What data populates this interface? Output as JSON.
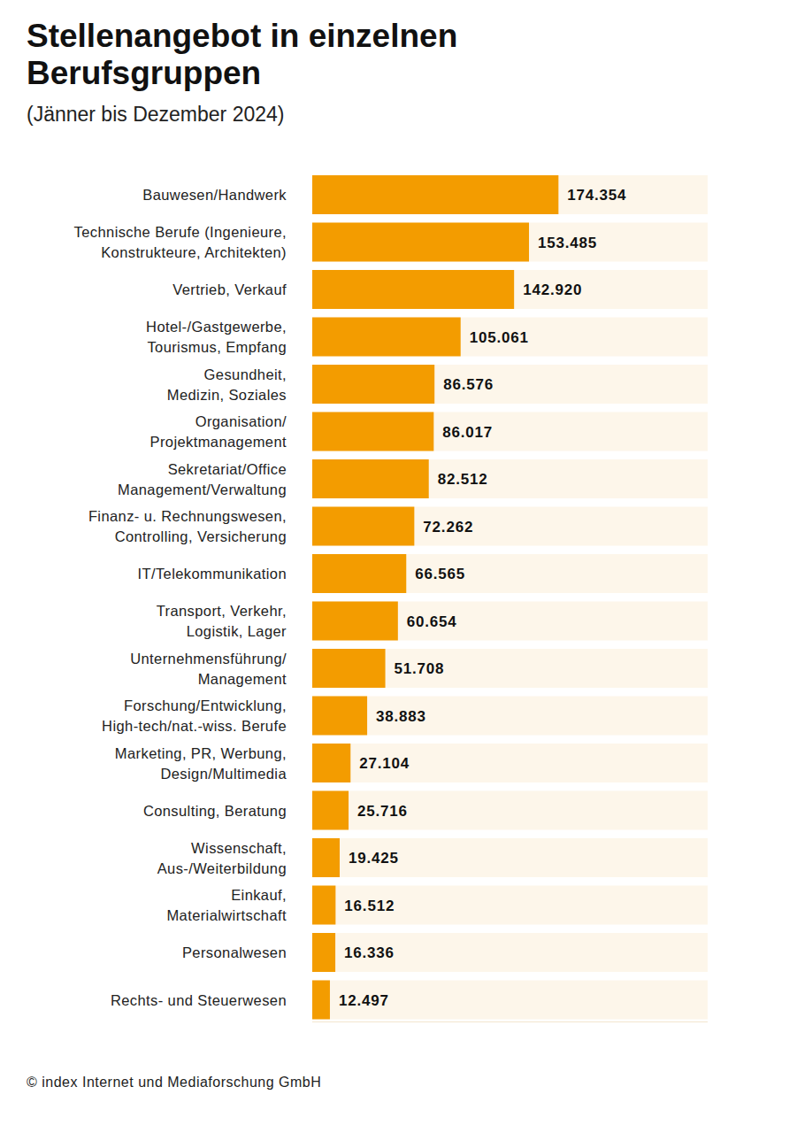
{
  "chart_data": {
    "type": "bar",
    "orientation": "horizontal",
    "title": "Stellenangebot in einzelnen Berufsgruppen",
    "subtitle": "(Jänner bis Dezember 2024)",
    "source": "© index Internet und Mediaforschung GmbH",
    "categories": [
      "Bauwesen/Handwerk",
      "Technische Berufe (Ingenieure,\nKonstrukteure, Architekten)",
      "Vertrieb, Verkauf",
      "Hotel-/Gastgewerbe,\nTourismus, Empfang",
      "Gesundheit,\nMedizin, Soziales",
      "Organisation/\nProjektmanagement",
      "Sekretariat/Office\nManagement/Verwaltung",
      "Finanz- u. Rechnungswesen,\nControlling, Versicherung",
      "IT/Telekommunikation",
      "Transport, Verkehr,\nLogistik, Lager",
      "Unternehmensführung/\nManagement",
      "Forschung/Entwicklung,\nHigh-tech/nat.-wiss. Berufe",
      "Marketing, PR, Werbung,\nDesign/Multimedia",
      "Consulting, Beratung",
      "Wissenschaft,\nAus-/Weiterbildung",
      "Einkauf,\nMaterialwirtschaft",
      "Personalwesen",
      "Rechts- und Steuerwesen"
    ],
    "values": [
      174354,
      153485,
      142920,
      105061,
      86576,
      86017,
      82512,
      72262,
      66565,
      60654,
      51708,
      38883,
      27104,
      25716,
      19425,
      16512,
      16336,
      12497
    ],
    "value_labels": [
      "174.354",
      "153.485",
      "142.920",
      "105.061",
      "86.576",
      "86.017",
      "82.512",
      "72.262",
      "66.565",
      "60.654",
      "51.708",
      "38.883",
      "27.104",
      "25.716",
      "19.425",
      "16.512",
      "16.336",
      "12.497"
    ],
    "color": "#f39c00",
    "xlim": [
      0,
      280000
    ],
    "data_labels": true,
    "tick_labels": false,
    "grid": false
  }
}
